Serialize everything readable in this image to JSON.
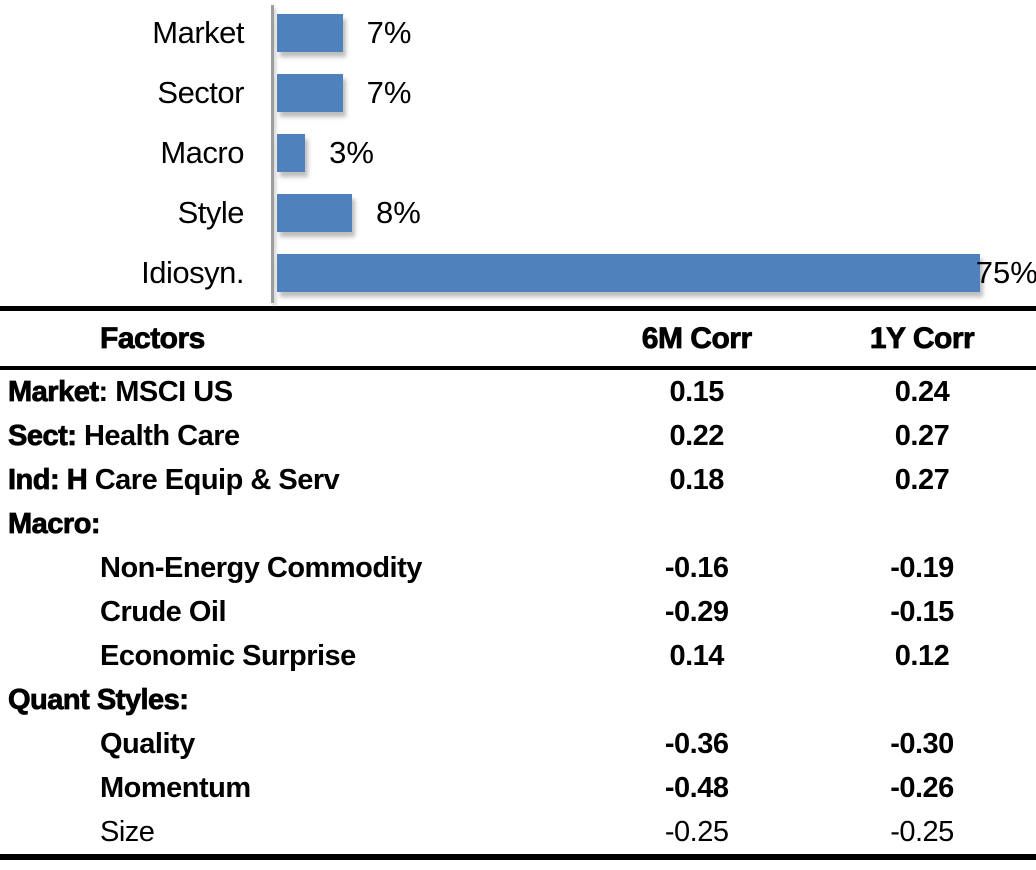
{
  "chart": {
    "xmax": 81,
    "bar_color": "#4f81bd",
    "axis_color": "#9d9d9d",
    "bars": [
      {
        "category": "Market",
        "value": 7,
        "label": "7%"
      },
      {
        "category": "Sector",
        "value": 7,
        "label": "7%"
      },
      {
        "category": "Macro",
        "value": 3,
        "label": "3%"
      },
      {
        "category": "Style",
        "value": 8,
        "label": "8%"
      },
      {
        "category": "Idiosyn.",
        "value": 75,
        "label": "75%"
      }
    ]
  },
  "chart_data": [
    {
      "type": "bar",
      "orientation": "horizontal",
      "categories": [
        "Market",
        "Sector",
        "Macro",
        "Style",
        "Idiosyn."
      ],
      "values": [
        7,
        7,
        3,
        8,
        75
      ],
      "data_labels": [
        "7%",
        "7%",
        "3%",
        "8%",
        "75%"
      ],
      "title": "",
      "xlabel": "",
      "ylabel": "",
      "xlim": [
        0,
        81
      ],
      "grid": false,
      "legend": false,
      "bar_color": "#4f81bd"
    },
    {
      "type": "table",
      "columns": [
        "Factors",
        "6M Corr",
        "1Y Corr"
      ],
      "rows": [
        [
          "Market: MSCI US",
          "0.15",
          "0.24"
        ],
        [
          "Sect: Health Care",
          "0.22",
          "0.27"
        ],
        [
          "Ind: H Care Equip & Serv",
          "0.18",
          "0.27"
        ],
        [
          "Macro:",
          "",
          ""
        ],
        [
          "Non-Energy Commodity",
          "-0.16",
          "-0.19"
        ],
        [
          "Crude Oil",
          "-0.29",
          "-0.15"
        ],
        [
          "Economic Surprise",
          "0.14",
          "0.12"
        ],
        [
          "Quant Styles:",
          "",
          ""
        ],
        [
          "Quality",
          "-0.36",
          "-0.30"
        ],
        [
          "Momentum",
          "-0.48",
          "-0.26"
        ],
        [
          "Size",
          "-0.25",
          "-0.25"
        ]
      ]
    }
  ],
  "table": {
    "headers": {
      "factors": "Factors",
      "corr6m": "6M Corr",
      "corr1y": "1Y Corr"
    },
    "rows": [
      {
        "prefix": "Market",
        "rest": ": MSCI US",
        "indent": false,
        "light": false,
        "c6": "0.15",
        "c1": "0.24"
      },
      {
        "prefix": "Sect:",
        "rest": " Health Care",
        "indent": false,
        "light": false,
        "c6": "0.22",
        "c1": "0.27"
      },
      {
        "prefix": "Ind: H",
        "rest": " Care Equip & Serv",
        "indent": false,
        "light": false,
        "c6": "0.18",
        "c1": "0.27"
      },
      {
        "prefix": "Macro:",
        "rest": "",
        "indent": false,
        "light": false,
        "c6": "",
        "c1": ""
      },
      {
        "prefix": "",
        "rest": "Non-Energy Commodity",
        "indent": true,
        "light": false,
        "c6": "-0.16",
        "c1": "-0.19"
      },
      {
        "prefix": "",
        "rest": "Crude Oil",
        "indent": true,
        "light": false,
        "c6": "-0.29",
        "c1": "-0.15"
      },
      {
        "prefix": "",
        "rest": "Economic Surprise",
        "indent": true,
        "light": false,
        "c6": "0.14",
        "c1": "0.12"
      },
      {
        "prefix": "Quant Styles:",
        "rest": "",
        "indent": false,
        "light": false,
        "c6": "",
        "c1": ""
      },
      {
        "prefix": "",
        "rest": "Quality",
        "indent": true,
        "light": false,
        "c6": "-0.36",
        "c1": "-0.30"
      },
      {
        "prefix": "",
        "rest": "Momentum",
        "indent": true,
        "light": false,
        "c6": "-0.48",
        "c1": "-0.26"
      },
      {
        "prefix": "",
        "rest": "Size",
        "indent": true,
        "light": true,
        "c6": "-0.25",
        "c1": "-0.25"
      }
    ]
  }
}
